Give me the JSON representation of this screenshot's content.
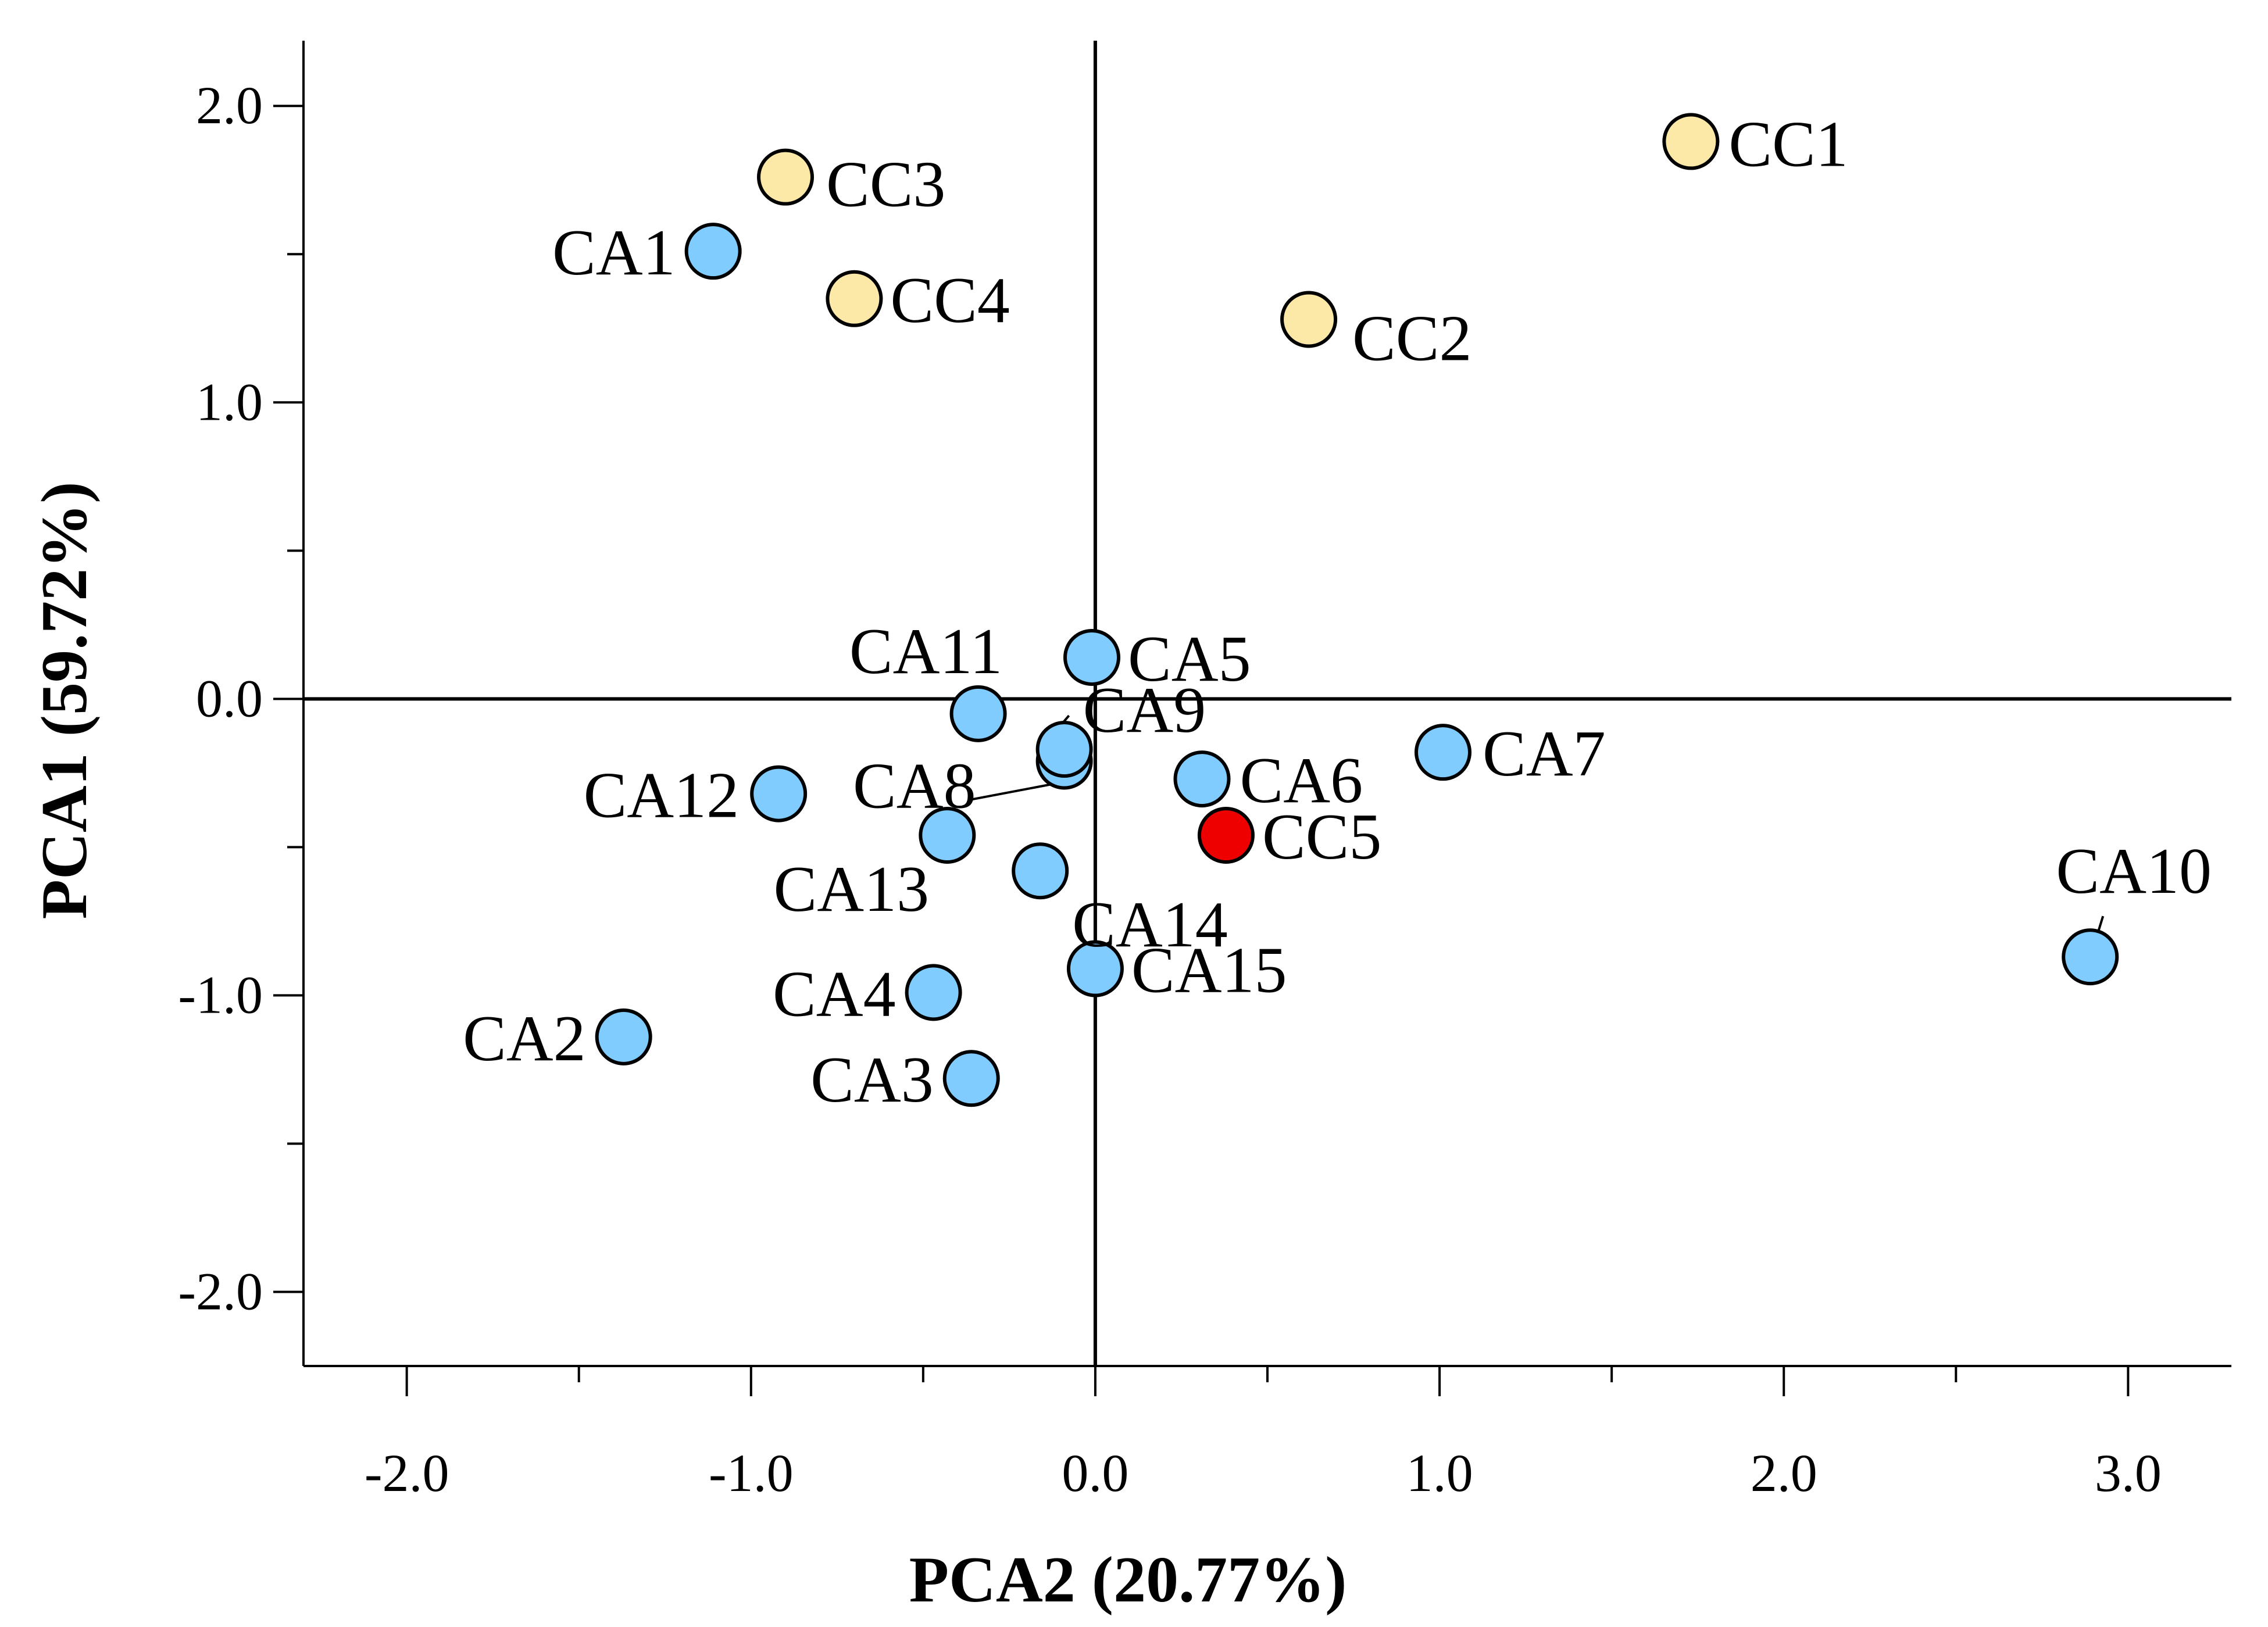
{
  "chart_data": {
    "type": "scatter",
    "title": "",
    "xlabel": "PCA2 (20.77%)",
    "ylabel": "PCA1 (59.72%)",
    "xlim": [
      -2.3,
      3.3
    ],
    "ylim": [
      -2.25,
      2.22
    ],
    "x_ticks": [
      -2.0,
      -1.0,
      0.0,
      1.0,
      2.0,
      3.0
    ],
    "x_tick_labels": [
      "-2.0",
      "-1.0",
      "0.0",
      "1.0",
      "2.0",
      "3.0"
    ],
    "y_ticks": [
      2.0,
      1.0,
      0.0,
      -1.0,
      -2.0
    ],
    "y_tick_labels": [
      "2.0",
      "1.0",
      "0.0",
      "-1.0",
      "-2.0"
    ],
    "colors": {
      "CA": "#80ccff",
      "CC": "#fde9a7",
      "highlight": "#ee0000"
    },
    "points": [
      {
        "label": "CC1",
        "x": 1.73,
        "y": 1.88,
        "group": "CC"
      },
      {
        "label": "CC2",
        "x": 0.62,
        "y": 1.28,
        "group": "CC"
      },
      {
        "label": "CC3",
        "x": -0.9,
        "y": 1.76,
        "group": "CC"
      },
      {
        "label": "CC4",
        "x": -0.7,
        "y": 1.35,
        "group": "CC"
      },
      {
        "label": "CC5",
        "x": 0.38,
        "y": -0.46,
        "group": "highlight"
      },
      {
        "label": "CA1",
        "x": -1.11,
        "y": 1.51,
        "group": "CA"
      },
      {
        "label": "CA2",
        "x": -1.37,
        "y": -1.14,
        "group": "CA"
      },
      {
        "label": "CA3",
        "x": -0.36,
        "y": -1.28,
        "group": "CA"
      },
      {
        "label": "CA4",
        "x": -0.47,
        "y": -0.99,
        "group": "CA"
      },
      {
        "label": "CA5",
        "x": -0.01,
        "y": 0.14,
        "group": "CA"
      },
      {
        "label": "CA6",
        "x": 0.31,
        "y": -0.27,
        "group": "CA"
      },
      {
        "label": "CA7",
        "x": 1.01,
        "y": -0.18,
        "group": "CA"
      },
      {
        "label": "CA8",
        "x": -0.09,
        "y": -0.21,
        "group": "CA"
      },
      {
        "label": "CA9",
        "x": -0.09,
        "y": -0.17,
        "group": "CA"
      },
      {
        "label": "CA10",
        "x": 2.89,
        "y": -0.87,
        "group": "CA"
      },
      {
        "label": "CA11",
        "x": -0.34,
        "y": -0.05,
        "group": "CA"
      },
      {
        "label": "CA12",
        "x": -0.92,
        "y": -0.32,
        "group": "CA"
      },
      {
        "label": "CA13",
        "x": -0.43,
        "y": -0.46,
        "group": "CA"
      },
      {
        "label": "CA14",
        "x": -0.16,
        "y": -0.58,
        "group": "CA"
      },
      {
        "label": "CA15",
        "x": 0.0,
        "y": -0.91,
        "group": "CA"
      }
    ]
  }
}
